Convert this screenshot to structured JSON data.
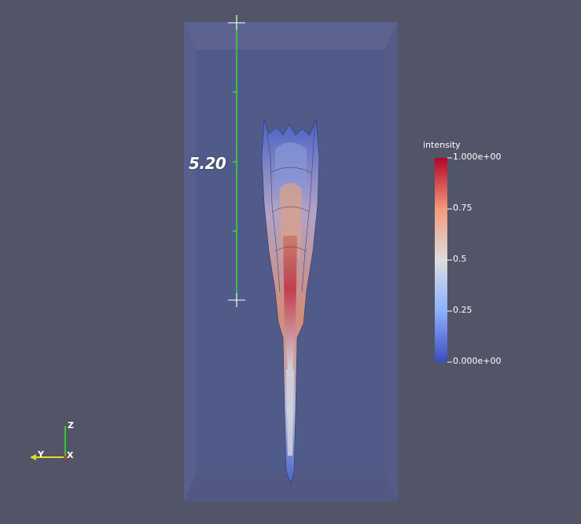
{
  "ruler": {
    "label": "5.20"
  },
  "legend": {
    "title": "intensity",
    "ticks": [
      {
        "value": "1.000e+00"
      },
      {
        "value": "0.75"
      },
      {
        "value": "0.5"
      },
      {
        "value": "0.25"
      },
      {
        "value": "0.000e+00"
      }
    ],
    "color_max": "#b40426",
    "color_mid": "#dddddd",
    "color_min": "#3b4cc0"
  },
  "axes": {
    "z": "Z",
    "y": "Y",
    "x": "X"
  },
  "colors": {
    "background": "#525468",
    "ruler": "#33dd33",
    "box": "#5a6296"
  }
}
